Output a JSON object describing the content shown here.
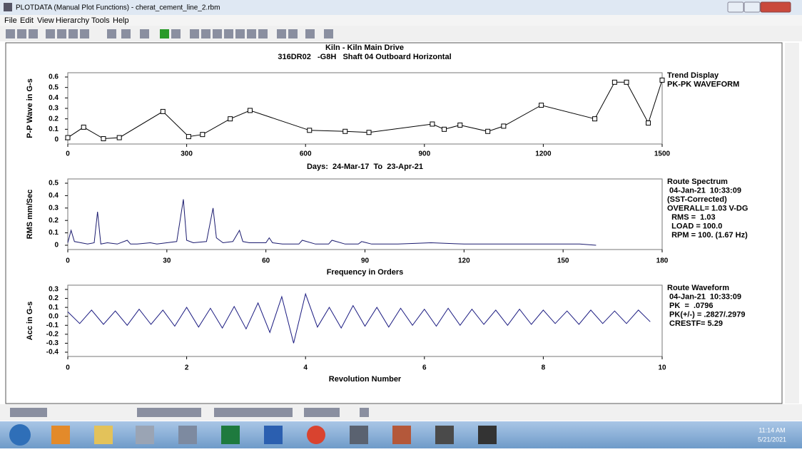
{
  "window": {
    "title": "PLOTDATA (Manual Plot Functions)  - cherat_cement_line_2.rbm",
    "menu": [
      "File",
      "Edit",
      "View",
      "Hierarchy",
      "Tools",
      "Help"
    ]
  },
  "chart_data": [
    {
      "type": "line",
      "title": "Kiln - Kiln Main Drive",
      "subtitle": "316DR02   -G8H   Shaft 04 Outboard Horizontal",
      "ylabel": "P-P Wave in G-s",
      "xlabel": "Days:  24-Mar-17  To  23-Apr-21",
      "annotations": [
        "Trend Display",
        "PK-PK WAVEFORM"
      ],
      "markers": true,
      "x": [
        0,
        40,
        90,
        130,
        240,
        305,
        340,
        410,
        460,
        610,
        700,
        760,
        920,
        950,
        990,
        1060,
        1100,
        1195,
        1330,
        1380,
        1410,
        1465,
        1500
      ],
      "series": [
        {
          "color": "#000000",
          "values": [
            0.02,
            0.12,
            0.01,
            0.02,
            0.27,
            0.03,
            0.05,
            0.2,
            0.28,
            0.09,
            0.08,
            0.07,
            0.15,
            0.1,
            0.14,
            0.08,
            0.13,
            0.33,
            0.2,
            0.55,
            0.55,
            0.16,
            0.57
          ]
        }
      ],
      "xlim": [
        0,
        1500
      ],
      "ylim": [
        0,
        0.6
      ],
      "xticks": [
        0,
        300,
        600,
        900,
        1200,
        1500
      ],
      "yticks": [
        0,
        0.1,
        0.2,
        0.3,
        0.4,
        0.5,
        0.6
      ]
    },
    {
      "type": "line",
      "ylabel": "RMS mm/Sec",
      "xlabel": "Frequency in Orders",
      "annotations": [
        "Route Spectrum",
        " 04-Jan-21  10:33:09",
        "(SST-Corrected)",
        "OVERALL= 1.03 V-DG",
        "  RMS =  1.03",
        "  LOAD = 100.0",
        "  RPM = 100. (1.67 Hz)"
      ],
      "markers": false,
      "x": [
        0,
        1,
        2,
        4,
        6,
        8,
        9,
        10,
        12,
        15,
        18,
        19,
        21,
        25,
        27,
        30,
        33,
        35,
        36,
        38,
        42,
        44,
        45,
        47,
        50,
        52,
        53,
        55,
        60,
        61,
        62,
        65,
        70,
        71,
        75,
        79,
        80,
        84,
        88,
        89,
        92,
        100,
        110,
        120,
        130,
        140,
        150,
        155,
        160
      ],
      "series": [
        {
          "color": "#1a1a6e",
          "values": [
            0.02,
            0.12,
            0.03,
            0.02,
            0.01,
            0.02,
            0.27,
            0.01,
            0.02,
            0.01,
            0.04,
            0.01,
            0.01,
            0.02,
            0.01,
            0.02,
            0.03,
            0.37,
            0.04,
            0.02,
            0.03,
            0.3,
            0.06,
            0.02,
            0.03,
            0.12,
            0.03,
            0.02,
            0.02,
            0.06,
            0.02,
            0.01,
            0.01,
            0.04,
            0.01,
            0.01,
            0.04,
            0.01,
            0.01,
            0.03,
            0.01,
            0.01,
            0.02,
            0.01,
            0.01,
            0.01,
            0.01,
            0.01,
            0
          ]
        }
      ],
      "xlim": [
        0,
        180
      ],
      "ylim": [
        0,
        0.5
      ],
      "xticks": [
        0,
        30,
        60,
        90,
        120,
        150,
        180
      ],
      "yticks": [
        0,
        0.1,
        0.2,
        0.3,
        0.4,
        0.5
      ]
    },
    {
      "type": "line",
      "ylabel": "Acc in G-s",
      "xlabel": "Revolution Number",
      "annotations": [
        "Route Waveform",
        " 04-Jan-21  10:33:09",
        " PK  =  .0796",
        " PK(+/-) = .2827/.2979",
        " CRESTF= 5.29"
      ],
      "markers": false,
      "x": [
        0,
        0.2,
        0.4,
        0.6,
        0.8,
        1,
        1.2,
        1.4,
        1.6,
        1.8,
        2,
        2.2,
        2.4,
        2.6,
        2.8,
        3,
        3.2,
        3.4,
        3.6,
        3.8,
        4,
        4.2,
        4.4,
        4.6,
        4.8,
        5,
        5.2,
        5.4,
        5.6,
        5.8,
        6,
        6.2,
        6.4,
        6.6,
        6.8,
        7,
        7.2,
        7.4,
        7.6,
        7.8,
        8,
        8.2,
        8.4,
        8.6,
        8.8,
        9,
        9.2,
        9.4,
        9.6,
        9.8
      ],
      "series": [
        {
          "color": "#1a1a80",
          "values": [
            0.05,
            -0.08,
            0.07,
            -0.09,
            0.06,
            -0.1,
            0.08,
            -0.09,
            0.07,
            -0.11,
            0.1,
            -0.12,
            0.09,
            -0.13,
            0.11,
            -0.14,
            0.15,
            -0.18,
            0.22,
            -0.3,
            0.25,
            -0.12,
            0.1,
            -0.13,
            0.12,
            -0.11,
            0.1,
            -0.12,
            0.09,
            -0.1,
            0.08,
            -0.11,
            0.09,
            -0.1,
            0.08,
            -0.09,
            0.07,
            -0.1,
            0.08,
            -0.09,
            0.07,
            -0.08,
            0.06,
            -0.09,
            0.07,
            -0.08,
            0.06,
            -0.08,
            0.07,
            -0.06
          ]
        }
      ],
      "xlim": [
        0,
        10
      ],
      "ylim": [
        -0.4,
        0.3
      ],
      "xticks": [
        0,
        2,
        4,
        6,
        8,
        10
      ],
      "yticks": [
        -0.4,
        -0.3,
        -0.2,
        -0.1,
        {
          "value": 0,
          "label": "0.0"
        },
        0.1,
        0.2,
        0.3
      ]
    }
  ],
  "taskbar": {
    "time": "11:14 AM",
    "date": "5/21/2021"
  }
}
